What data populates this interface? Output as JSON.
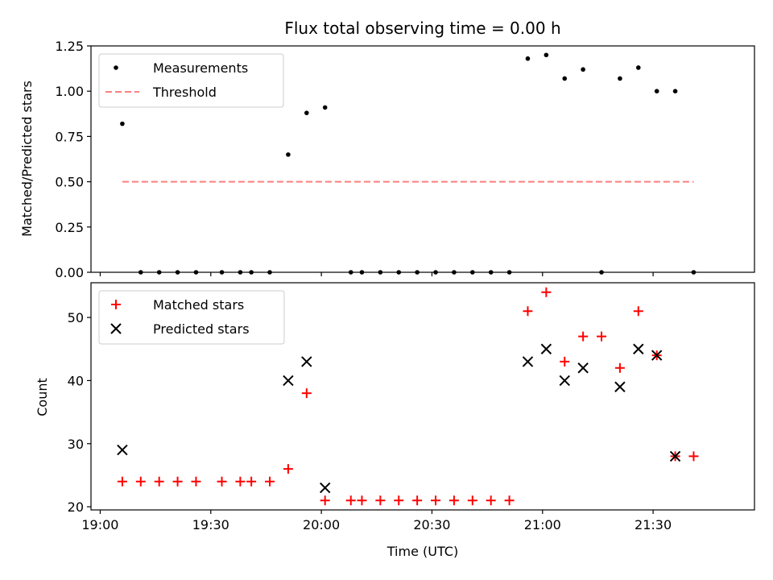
{
  "chart_data": [
    {
      "type": "scatter",
      "title": "Flux total observing time = 0.00 h",
      "xlabel": "",
      "ylabel": "Matched/Predicted stars",
      "ylim": [
        0.0,
        1.25
      ],
      "xlim_minutes": [
        -2.5,
        177.5
      ],
      "xticks": [
        "19:00",
        "19:30",
        "20:00",
        "20:30",
        "21:00",
        "21:30"
      ],
      "xtick_labels_visible": false,
      "yticks": [
        "0.00",
        "0.25",
        "0.50",
        "0.75",
        "1.00",
        "1.25"
      ],
      "legend_placement": "top-left",
      "grid": false,
      "series": [
        {
          "name": "Measurements",
          "marker": "dot",
          "color": "#000000",
          "x": [
            "19:06",
            "19:11",
            "19:16",
            "19:21",
            "19:26",
            "19:33",
            "19:38",
            "19:41",
            "19:46",
            "19:51",
            "19:56",
            "20:01",
            "20:08",
            "20:11",
            "20:16",
            "20:21",
            "20:26",
            "20:31",
            "20:36",
            "20:41",
            "20:46",
            "20:51",
            "20:56",
            "21:01",
            "21:06",
            "21:11",
            "21:16",
            "21:21",
            "21:26",
            "21:31",
            "21:36",
            "21:41"
          ],
          "values": [
            0.82,
            0,
            0,
            0,
            0,
            0,
            0,
            0,
            0,
            0.65,
            0.88,
            0.91,
            0,
            0,
            0,
            0,
            0,
            0,
            0,
            0,
            0,
            0,
            1.18,
            1.2,
            1.07,
            1.12,
            0,
            1.07,
            1.13,
            1.0,
            1.0,
            0
          ]
        },
        {
          "name": "Threshold",
          "marker": "dashed-line",
          "color": "#ff7f7f",
          "x": [
            "19:06",
            "21:41"
          ],
          "values": [
            0.5,
            0.5
          ]
        }
      ]
    },
    {
      "type": "scatter",
      "title": "",
      "xlabel": "Time (UTC)",
      "ylabel": "Count",
      "ylim": [
        19.5,
        55.5
      ],
      "xlim_minutes": [
        -2.5,
        177.5
      ],
      "xticks": [
        "19:00",
        "19:30",
        "20:00",
        "20:30",
        "21:00",
        "21:30"
      ],
      "yticks": [
        "20",
        "30",
        "40",
        "50"
      ],
      "legend_placement": "top-left",
      "grid": false,
      "series": [
        {
          "name": "Matched stars",
          "marker": "plus",
          "color": "#ff0000",
          "x": [
            "19:06",
            "19:11",
            "19:16",
            "19:21",
            "19:26",
            "19:33",
            "19:38",
            "19:41",
            "19:46",
            "19:51",
            "19:56",
            "20:01",
            "20:08",
            "20:11",
            "20:16",
            "20:21",
            "20:26",
            "20:31",
            "20:36",
            "20:41",
            "20:46",
            "20:51",
            "20:56",
            "21:01",
            "21:06",
            "21:11",
            "21:16",
            "21:21",
            "21:26",
            "21:31",
            "21:36",
            "21:41"
          ],
          "values": [
            24,
            24,
            24,
            24,
            24,
            24,
            24,
            24,
            24,
            26,
            38,
            21,
            21,
            21,
            21,
            21,
            21,
            21,
            21,
            21,
            21,
            21,
            51,
            54,
            43,
            47,
            47,
            42,
            51,
            44,
            28,
            28
          ]
        },
        {
          "name": "Predicted stars",
          "marker": "x",
          "color": "#000000",
          "x": [
            "19:06",
            "19:51",
            "19:56",
            "20:01",
            "20:56",
            "21:01",
            "21:06",
            "21:11",
            "21:21",
            "21:26",
            "21:31",
            "21:36"
          ],
          "values": [
            29,
            40,
            43,
            23,
            43,
            45,
            40,
            42,
            39,
            45,
            44,
            28
          ]
        }
      ]
    }
  ]
}
